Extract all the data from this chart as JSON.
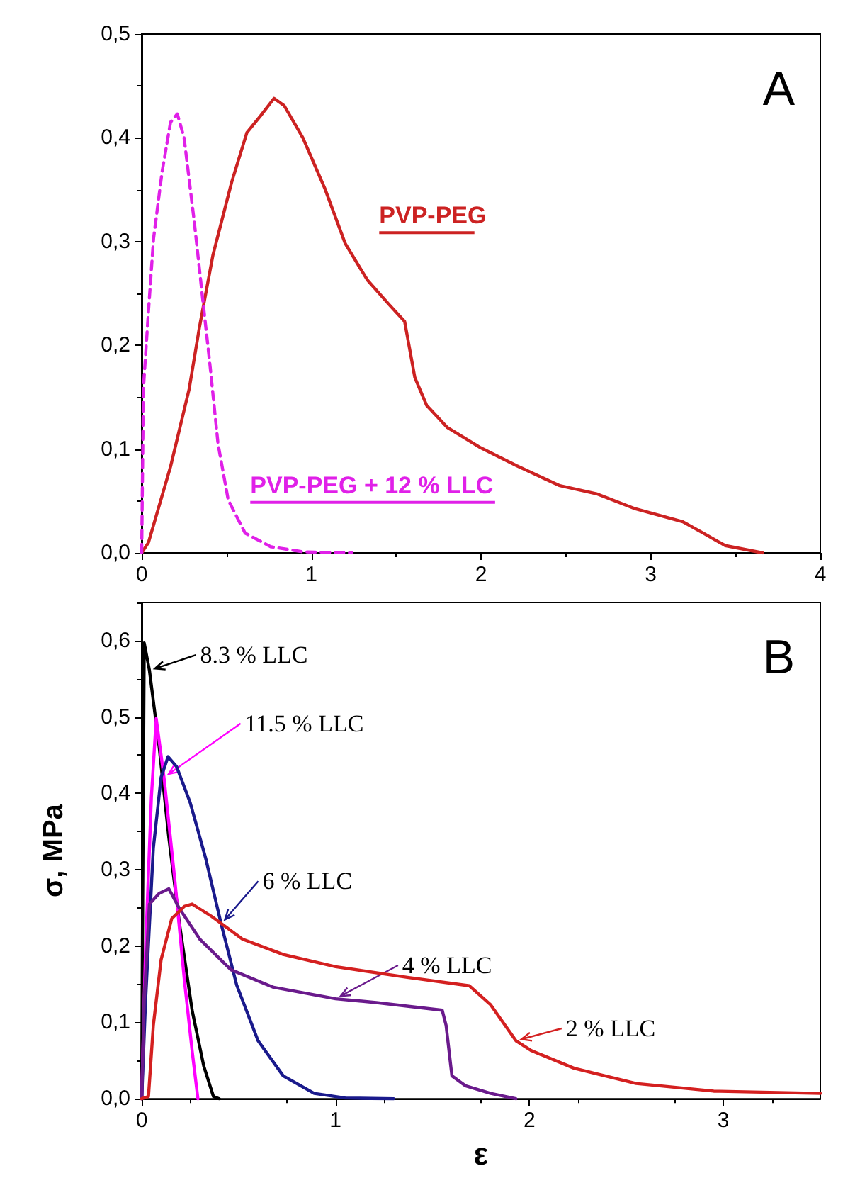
{
  "chart_data": [
    {
      "type": "line",
      "annotations": [
        "A"
      ],
      "xlim": [
        0,
        4
      ],
      "xticks": [
        0,
        1,
        2,
        3,
        4
      ],
      "ylim": [
        0,
        0.5
      ],
      "yticks": [
        {
          "value": 0,
          "label": "0,0"
        },
        {
          "value": 0.1,
          "label": "0,1"
        },
        {
          "value": 0.2,
          "label": "0,2"
        },
        {
          "value": 0.3,
          "label": "0,3"
        },
        {
          "value": 0.4,
          "label": "0,4"
        },
        {
          "value": 0.5,
          "label": "0,5"
        }
      ],
      "grid": false,
      "marker": "none",
      "series": [
        {
          "name": "PVP-PEG",
          "color": "#cc2222",
          "x": [
            0,
            0.04,
            0.17,
            0.28,
            0.34,
            0.42,
            0.53,
            0.62,
            0.7,
            0.78,
            0.84,
            0.95,
            1.08,
            1.2,
            1.33,
            1.46,
            1.55,
            1.61,
            1.68,
            1.8,
            1.99,
            2.21,
            2.46,
            2.68,
            2.9,
            3.19,
            3.31,
            3.44,
            3.66
          ],
          "values": [
            0,
            0.01,
            0.083,
            0.158,
            0.217,
            0.287,
            0.357,
            0.405,
            0.421,
            0.438,
            0.431,
            0.4,
            0.351,
            0.298,
            0.263,
            0.239,
            0.223,
            0.169,
            0.142,
            0.121,
            0.102,
            0.084,
            0.065,
            0.057,
            0.043,
            0.03,
            0.019,
            0.007,
            0
          ]
        },
        {
          "name": "PVP-PEG + 12 % LLC",
          "color": "#e020e8",
          "line_style": "dashed",
          "x": [
            0,
            0.01,
            0.04,
            0.07,
            0.12,
            0.17,
            0.21,
            0.25,
            0.31,
            0.36,
            0.4,
            0.45,
            0.51,
            0.61,
            0.76,
            0.95,
            1.24
          ],
          "values": [
            0,
            0.158,
            0.233,
            0.303,
            0.367,
            0.415,
            0.423,
            0.4,
            0.319,
            0.244,
            0.185,
            0.105,
            0.051,
            0.019,
            0.006,
            0.001,
            0
          ]
        }
      ]
    },
    {
      "type": "line",
      "annotations": [
        "B"
      ],
      "xlabel": "ε",
      "ylabel": "σ, MPa",
      "xlim": [
        0,
        3.5
      ],
      "xticks": [
        0,
        1,
        2,
        3
      ],
      "ylim": [
        0,
        0.65
      ],
      "yticks": [
        {
          "value": 0,
          "label": "0,0"
        },
        {
          "value": 0.1,
          "label": "0,1"
        },
        {
          "value": 0.2,
          "label": "0,2"
        },
        {
          "value": 0.3,
          "label": "0,3"
        },
        {
          "value": 0.4,
          "label": "0,4"
        },
        {
          "value": 0.5,
          "label": "0,5"
        },
        {
          "value": 0.6,
          "label": "0,6"
        }
      ],
      "grid": false,
      "legend": "top left",
      "marker": "none",
      "series": [
        {
          "name": "8.3 % LLC",
          "color": "#000000",
          "x": [
            0,
            0.005,
            0.013,
            0.04,
            0.09,
            0.14,
            0.195,
            0.26,
            0.32,
            0.37,
            0.4
          ],
          "values": [
            0,
            0.262,
            0.597,
            0.561,
            0.461,
            0.342,
            0.229,
            0.116,
            0.043,
            0.003,
            0
          ]
        },
        {
          "name": "11.5 % LLC",
          "color": "#ff00ff",
          "x": [
            0,
            0.02,
            0.05,
            0.075,
            0.115,
            0.17,
            0.22,
            0.26,
            0.29
          ],
          "values": [
            0,
            0.196,
            0.395,
            0.498,
            0.421,
            0.289,
            0.156,
            0.063,
            0
          ]
        },
        {
          "name": "6 % LLC",
          "color": "#1a1a8c",
          "x": [
            0,
            0.02,
            0.06,
            0.1,
            0.136,
            0.18,
            0.25,
            0.33,
            0.41,
            0.49,
            0.6,
            0.73,
            0.89,
            1.05,
            1.3
          ],
          "values": [
            0,
            0.129,
            0.328,
            0.421,
            0.448,
            0.435,
            0.388,
            0.315,
            0.229,
            0.149,
            0.076,
            0.03,
            0.007,
            0.001,
            0
          ]
        },
        {
          "name": "4 % LLC",
          "color": "#6a1a8c",
          "x": [
            0,
            0.013,
            0.04,
            0.09,
            0.14,
            0.195,
            0.3,
            0.46,
            0.68,
            1.0,
            1.21,
            1.55,
            1.57,
            1.6,
            1.67,
            1.8,
            1.93
          ],
          "values": [
            0,
            0.129,
            0.255,
            0.269,
            0.275,
            0.249,
            0.209,
            0.169,
            0.146,
            0.131,
            0.126,
            0.116,
            0.096,
            0.03,
            0.017,
            0.007,
            0
          ]
        },
        {
          "name": "2 % LLC",
          "color": "#d42020",
          "x": [
            0,
            0.035,
            0.06,
            0.1,
            0.155,
            0.22,
            0.26,
            0.36,
            0.52,
            0.73,
            1.0,
            1.37,
            1.69,
            1.8,
            1.93,
            2.01,
            2.23,
            2.55,
            2.95,
            3.5
          ],
          "values": [
            0,
            0.003,
            0.096,
            0.182,
            0.236,
            0.252,
            0.255,
            0.239,
            0.209,
            0.189,
            0.173,
            0.159,
            0.148,
            0.123,
            0.076,
            0.063,
            0.04,
            0.02,
            0.01,
            0.007
          ]
        }
      ]
    }
  ]
}
